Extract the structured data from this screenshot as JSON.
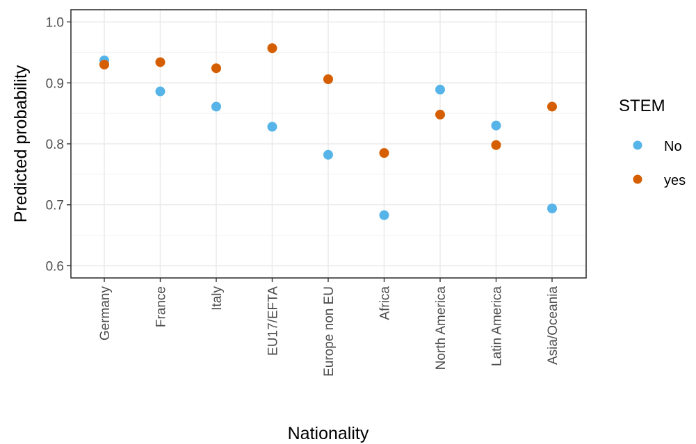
{
  "chart_data": {
    "type": "scatter",
    "xlabel": "Nationality",
    "ylabel": "Predicted probability",
    "categories": [
      "Germany",
      "France",
      "Italy",
      "EU17/EFTA",
      "Europe non EU",
      "Africa",
      "North America",
      "Latin America",
      "Asia/Oceania"
    ],
    "ylim": [
      0.58,
      1.02
    ],
    "yticks": [
      0.6,
      0.7,
      0.8,
      0.9,
      1.0
    ],
    "ytick_labels": [
      "0.6",
      "0.7",
      "0.8",
      "0.9",
      "1.0"
    ],
    "grid": true,
    "legend": {
      "title": "STEM",
      "placement": "right"
    },
    "series": [
      {
        "name": "No",
        "color": "#56B4E9",
        "values": [
          0.937,
          0.886,
          0.861,
          0.828,
          0.782,
          0.683,
          0.889,
          0.83,
          0.694
        ]
      },
      {
        "name": "yes",
        "color": "#D55E00",
        "values": [
          0.93,
          0.934,
          0.924,
          0.957,
          0.906,
          0.785,
          0.848,
          0.798,
          0.861
        ]
      }
    ]
  }
}
